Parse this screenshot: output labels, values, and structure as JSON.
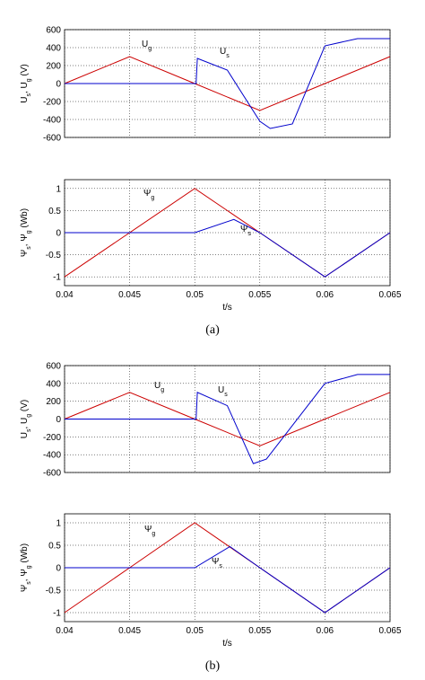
{
  "captions": [
    "(a)",
    "(b)"
  ],
  "chart_data": [
    {
      "type": "line",
      "panel": "(a) top",
      "ylabel": "U_s, U_g (V)",
      "ylabel_parts": [
        "U",
        "s",
        ", U",
        "g",
        " (V)"
      ],
      "xlim": [
        0.04,
        0.065
      ],
      "ylim": [
        -600,
        600
      ],
      "yticks": [
        600,
        400,
        200,
        0,
        -200,
        -400,
        -600
      ],
      "xticks": [
        0.04,
        0.045,
        0.05,
        0.055,
        0.06,
        0.065
      ],
      "xtick_labels": [],
      "grid": true,
      "series": [
        {
          "name": "U_g",
          "label_main": "U",
          "label_sub": "g",
          "color": "#cc0000",
          "x": [
            0.04,
            0.045,
            0.05,
            0.055,
            0.06,
            0.065
          ],
          "values": [
            0,
            300,
            0,
            -300,
            0,
            300
          ]
        },
        {
          "name": "U_s",
          "label_main": "U",
          "label_sub": "s",
          "color": "#0000cc",
          "x": [
            0.04,
            0.0501,
            0.0502,
            0.0525,
            0.055,
            0.0558,
            0.0575,
            0.06,
            0.0625,
            0.065
          ],
          "values": [
            0,
            0,
            280,
            150,
            -420,
            -500,
            -450,
            420,
            500,
            500
          ]
        }
      ]
    },
    {
      "type": "line",
      "panel": "(a) bottom",
      "ylabel": "Ψ_s, Ψ_g (Wb)",
      "ylabel_parts": [
        "Ψ",
        "s",
        ", Ψ",
        "g",
        " (Wb)"
      ],
      "xlabel": "t/s",
      "xlim": [
        0.04,
        0.065
      ],
      "ylim": [
        -1.2,
        1.2
      ],
      "yticks": [
        1,
        0.5,
        0,
        -0.5,
        -1
      ],
      "xticks": [
        0.04,
        0.045,
        0.05,
        0.055,
        0.06,
        0.065
      ],
      "xtick_labels": [
        "0.04",
        "0.045",
        "0.05",
        "0.055",
        "0.06",
        "0.065"
      ],
      "grid": true,
      "series": [
        {
          "name": "Ψ_g",
          "label_main": "Ψ",
          "label_sub": "g",
          "color": "#cc0000",
          "x": [
            0.04,
            0.045,
            0.05,
            0.055,
            0.06,
            0.065
          ],
          "values": [
            -1,
            0,
            1,
            0,
            -1,
            0
          ]
        },
        {
          "name": "Ψ_s",
          "label_main": "Ψ",
          "label_sub": "s",
          "color": "#0000cc",
          "x": [
            0.04,
            0.05,
            0.053,
            0.055,
            0.06,
            0.065
          ],
          "values": [
            0,
            0,
            0.3,
            0,
            -1,
            0
          ]
        }
      ]
    },
    {
      "type": "line",
      "panel": "(b) top",
      "ylabel": "U_s, U_g (V)",
      "ylabel_parts": [
        "U",
        "s",
        ", U",
        "g",
        " (V)"
      ],
      "xlim": [
        0.04,
        0.065
      ],
      "ylim": [
        -600,
        600
      ],
      "yticks": [
        600,
        400,
        200,
        0,
        -200,
        -400,
        -600
      ],
      "xticks": [
        0.04,
        0.045,
        0.05,
        0.055,
        0.06,
        0.065
      ],
      "xtick_labels": [],
      "grid": true,
      "series": [
        {
          "name": "U_g",
          "label_main": "U",
          "label_sub": "g",
          "color": "#cc0000",
          "x": [
            0.04,
            0.045,
            0.05,
            0.055,
            0.06,
            0.065
          ],
          "values": [
            0,
            300,
            0,
            -300,
            0,
            300
          ]
        },
        {
          "name": "U_s",
          "label_main": "U",
          "label_sub": "s",
          "color": "#0000cc",
          "x": [
            0.04,
            0.0501,
            0.0502,
            0.0525,
            0.0545,
            0.0555,
            0.06,
            0.0625,
            0.065
          ],
          "values": [
            0,
            0,
            300,
            150,
            -500,
            -450,
            400,
            500,
            500
          ]
        }
      ]
    },
    {
      "type": "line",
      "panel": "(b) bottom",
      "ylabel": "Ψ_s, Ψ_g (Wb)",
      "ylabel_parts": [
        "Ψ",
        "s",
        ", Ψ",
        "g",
        " (Wb)"
      ],
      "xlabel": "t/s",
      "xlim": [
        0.04,
        0.065
      ],
      "ylim": [
        -1.2,
        1.2
      ],
      "yticks": [
        1,
        0.5,
        0,
        -0.5,
        -1
      ],
      "xticks": [
        0.04,
        0.045,
        0.05,
        0.055,
        0.06,
        0.065
      ],
      "xtick_labels": [
        "0.04",
        "0.045",
        "0.05",
        "0.055",
        "0.06",
        "0.065"
      ],
      "grid": true,
      "series": [
        {
          "name": "Ψ_g",
          "label_main": "Ψ",
          "label_sub": "g",
          "color": "#cc0000",
          "x": [
            0.04,
            0.045,
            0.05,
            0.055,
            0.06,
            0.065
          ],
          "values": [
            -1,
            0,
            1,
            0,
            -1,
            0
          ]
        },
        {
          "name": "Ψ_s",
          "label_main": "Ψ",
          "label_sub": "s",
          "color": "#0000cc",
          "x": [
            0.04,
            0.05,
            0.0527,
            0.055,
            0.06,
            0.065
          ],
          "values": [
            0,
            0,
            0.47,
            0,
            -1,
            0
          ]
        }
      ]
    }
  ]
}
